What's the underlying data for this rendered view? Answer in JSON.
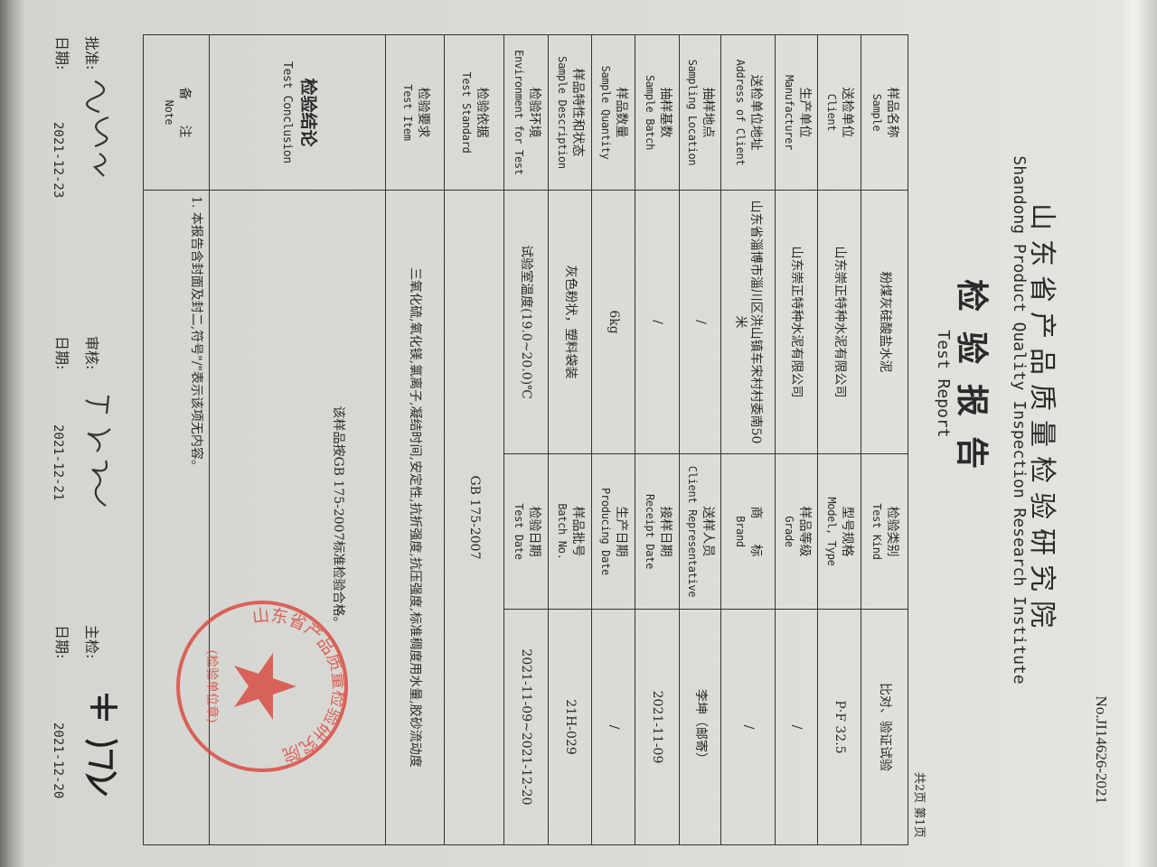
{
  "header": {
    "report_no": "No.JI14626-2021",
    "institute_cn": "山东省产品质量检验研究院",
    "institute_en": "Shandong Product Quality Inspection Research Institute",
    "title_cn": "检验报告",
    "title_en": "Test Report",
    "pages": "共2页 第1页"
  },
  "rows": [
    {
      "l_cn": "样品名称",
      "l_en": "Sample",
      "v": "粉煤灰硅酸盐水泥",
      "r_cn": "检验类别",
      "r_en": "Test Kind",
      "rv": "比对、验证试验"
    },
    {
      "l_cn": "送检单位",
      "l_en": "Client",
      "v": "山东崇正特种水泥有限公司",
      "r_cn": "型号规格",
      "r_en": "Model, Type",
      "rv": "P·F 32.5"
    },
    {
      "l_cn": "生产单位",
      "l_en": "Manufacturer",
      "v": "山东崇正特种水泥有限公司",
      "r_cn": "样品等级",
      "r_en": "Grade",
      "rv": "/"
    },
    {
      "l_cn": "送检单位地址",
      "l_en": "Address of Client",
      "v": "山东省淄博市淄川区洪山镇车宋村村委南50米",
      "r_cn": "商　　标",
      "r_en": "Brand",
      "rv": "/"
    },
    {
      "l_cn": "抽样地点",
      "l_en": "Sampling Location",
      "v": "/",
      "r_cn": "送样人员",
      "r_en": "Client Representative",
      "rv": "李坤（邮寄）"
    },
    {
      "l_cn": "抽样基数",
      "l_en": "Sample Batch",
      "v": "/",
      "r_cn": "接样日期",
      "r_en": "Receipt Date",
      "rv": "2021-11-09"
    },
    {
      "l_cn": "样品数量",
      "l_en": "Sample Quantity",
      "v": "6kg",
      "r_cn": "生产日期",
      "r_en": "Producing Date",
      "rv": "/"
    },
    {
      "l_cn": "样品特性和状态",
      "l_en": "Sample Description",
      "v": "灰色粉状，塑料袋装",
      "r_cn": "样品批号",
      "r_en": "Batch No.",
      "rv": "21H-029"
    },
    {
      "l_cn": "检验环境",
      "l_en": "Environment for Test",
      "v": "试验室温度(19.0~20.0)℃",
      "r_cn": "检验日期",
      "r_en": "Test Date",
      "rv": "2021-11-09~2021-12-20"
    }
  ],
  "standard": {
    "l_cn": "检验依据",
    "l_en": "Test Standard",
    "v": "GB 175-2007"
  },
  "item": {
    "l_cn": "检验要求",
    "l_en": "Test Item",
    "v": "三氧化硫,氧化镁,氯离子,凝结时间,安定性,抗折强度,抗压强度,标准稠度用水量,胶砂流动度"
  },
  "conclusion": {
    "l_cn": "检验结论",
    "l_en": "Test Conclusion",
    "v": "该样品按GB 175-2007标准检验合格。"
  },
  "note": {
    "l_cn": "备　　注",
    "l_en": "Note",
    "v": "1. 本报告含封面及封二,符号\"/\"表示该项无内容。"
  },
  "signoff": {
    "approve_label": "批准:",
    "review_label": "审核:",
    "inspect_label": "主检:",
    "date_label": "日期:",
    "approve_date": "2021-12-23",
    "review_date": "2021-12-21",
    "inspect_date": "2021-12-20"
  },
  "stamp": {
    "text": "山东省产品质量检验研究院",
    "subtext": "(检验单位章)",
    "color": "#d9453b"
  }
}
